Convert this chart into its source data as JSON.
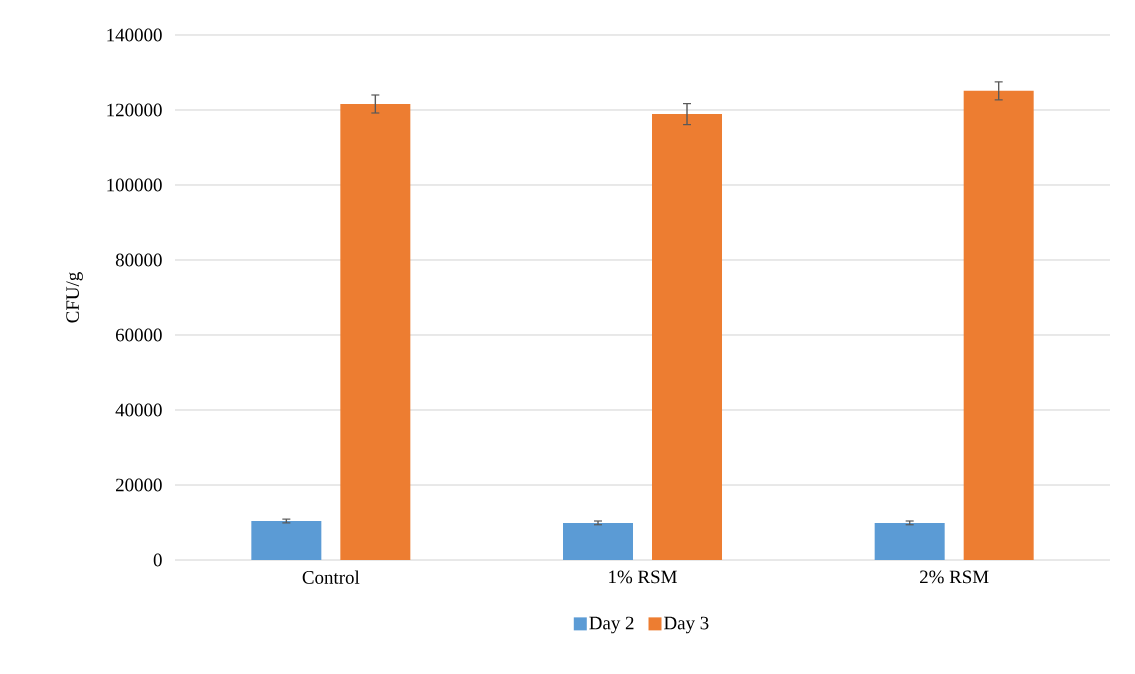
{
  "chart_data": {
    "type": "bar",
    "ylabel": "CFU/g",
    "categories": [
      "Control",
      "1% RSM",
      "2% RSM"
    ],
    "series": [
      {
        "name": "Day 2",
        "color": "#5b9bd5",
        "values": [
          10400,
          9900,
          9900
        ],
        "errors": [
          500,
          500,
          500
        ]
      },
      {
        "name": "Day 3",
        "color": "#ed7d31",
        "values": [
          121600,
          118900,
          125100
        ],
        "errors": [
          2400,
          2800,
          2400
        ]
      }
    ],
    "ylim": [
      0,
      140000
    ],
    "yticks": [
      0,
      20000,
      40000,
      60000,
      80000,
      100000,
      120000,
      140000
    ],
    "grid": "y",
    "legend": "bottom"
  }
}
